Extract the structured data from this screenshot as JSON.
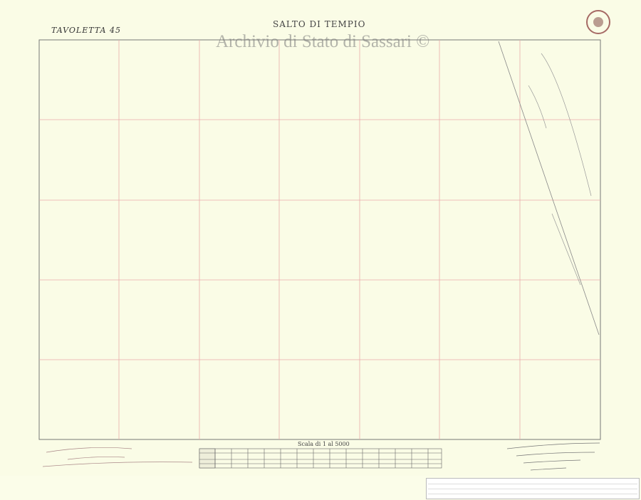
{
  "map": {
    "sheet_label": "TAVOLETTA 45",
    "title": "SALTO DI TEMPIO",
    "watermark": "Archivio di Stato di Sassari ©",
    "scale_title": "Scala di 1 al 5000",
    "grid_color": "#e8a8a8",
    "frame_color": "#666666"
  }
}
